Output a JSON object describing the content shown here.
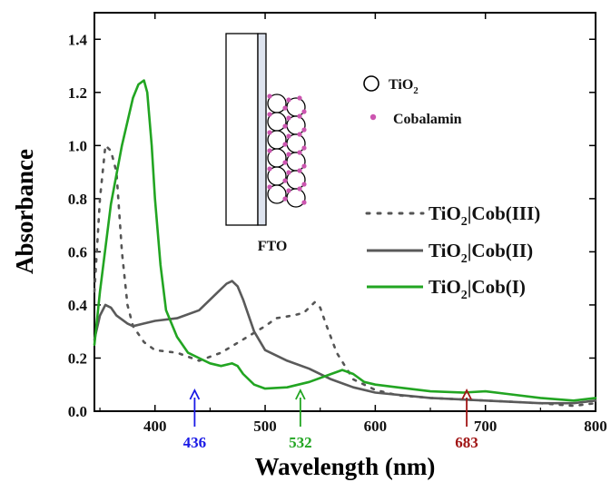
{
  "chart_data": {
    "type": "line",
    "title": "",
    "xlabel": "Wavelength (nm)",
    "ylabel": "Absorbance",
    "xlim": [
      345,
      800
    ],
    "ylim": [
      0.0,
      1.5
    ],
    "xticks": [
      400,
      500,
      600,
      700,
      800
    ],
    "yticks": [
      0.0,
      0.2,
      0.4,
      0.6,
      0.8,
      1.0,
      1.2,
      1.4
    ],
    "grid": false,
    "legend": {
      "placement": "right",
      "entries": [
        {
          "label_main": "TiO",
          "label_sub": "2",
          "label_rest": "|Cob(III)"
        },
        {
          "label_main": "TiO",
          "label_sub": "2",
          "label_rest": "|Cob(II)"
        },
        {
          "label_main": "TiO",
          "label_sub": "2",
          "label_rest": "|Cob(I)"
        }
      ]
    },
    "series": [
      {
        "legend_index": 0,
        "style": "dotted",
        "color": "#555555",
        "points": [
          [
            345,
            0.45
          ],
          [
            350,
            0.8
          ],
          [
            355,
            1.0
          ],
          [
            360,
            0.98
          ],
          [
            365,
            0.9
          ],
          [
            370,
            0.6
          ],
          [
            375,
            0.4
          ],
          [
            380,
            0.32
          ],
          [
            390,
            0.26
          ],
          [
            400,
            0.23
          ],
          [
            420,
            0.22
          ],
          [
            440,
            0.19
          ],
          [
            460,
            0.22
          ],
          [
            480,
            0.27
          ],
          [
            500,
            0.32
          ],
          [
            510,
            0.35
          ],
          [
            525,
            0.36
          ],
          [
            535,
            0.37
          ],
          [
            545,
            0.41
          ],
          [
            550,
            0.39
          ],
          [
            555,
            0.33
          ],
          [
            565,
            0.22
          ],
          [
            580,
            0.12
          ],
          [
            600,
            0.08
          ],
          [
            620,
            0.06
          ],
          [
            650,
            0.05
          ],
          [
            700,
            0.04
          ],
          [
            750,
            0.03
          ],
          [
            780,
            0.02
          ],
          [
            800,
            0.03
          ]
        ]
      },
      {
        "legend_index": 1,
        "style": "solid",
        "color": "#5a5a5a",
        "points": [
          [
            345,
            0.27
          ],
          [
            350,
            0.36
          ],
          [
            355,
            0.4
          ],
          [
            360,
            0.39
          ],
          [
            365,
            0.36
          ],
          [
            375,
            0.33
          ],
          [
            380,
            0.32
          ],
          [
            390,
            0.33
          ],
          [
            400,
            0.34
          ],
          [
            420,
            0.35
          ],
          [
            440,
            0.38
          ],
          [
            455,
            0.44
          ],
          [
            465,
            0.48
          ],
          [
            470,
            0.49
          ],
          [
            475,
            0.47
          ],
          [
            480,
            0.42
          ],
          [
            490,
            0.3
          ],
          [
            500,
            0.23
          ],
          [
            520,
            0.19
          ],
          [
            540,
            0.16
          ],
          [
            560,
            0.12
          ],
          [
            580,
            0.09
          ],
          [
            600,
            0.07
          ],
          [
            650,
            0.05
          ],
          [
            700,
            0.04
          ],
          [
            750,
            0.03
          ],
          [
            780,
            0.03
          ],
          [
            800,
            0.04
          ]
        ]
      },
      {
        "legend_index": 2,
        "style": "solid",
        "color": "#22a522",
        "points": [
          [
            345,
            0.25
          ],
          [
            350,
            0.45
          ],
          [
            360,
            0.78
          ],
          [
            370,
            1.0
          ],
          [
            380,
            1.18
          ],
          [
            385,
            1.23
          ],
          [
            390,
            1.245
          ],
          [
            393,
            1.2
          ],
          [
            397,
            1.0
          ],
          [
            400,
            0.8
          ],
          [
            405,
            0.55
          ],
          [
            410,
            0.38
          ],
          [
            420,
            0.28
          ],
          [
            430,
            0.22
          ],
          [
            440,
            0.2
          ],
          [
            450,
            0.18
          ],
          [
            460,
            0.17
          ],
          [
            470,
            0.18
          ],
          [
            475,
            0.17
          ],
          [
            480,
            0.14
          ],
          [
            490,
            0.1
          ],
          [
            500,
            0.085
          ],
          [
            520,
            0.09
          ],
          [
            540,
            0.11
          ],
          [
            560,
            0.14
          ],
          [
            570,
            0.155
          ],
          [
            580,
            0.14
          ],
          [
            590,
            0.11
          ],
          [
            600,
            0.1
          ],
          [
            620,
            0.09
          ],
          [
            650,
            0.075
          ],
          [
            680,
            0.07
          ],
          [
            700,
            0.075
          ],
          [
            720,
            0.065
          ],
          [
            750,
            0.05
          ],
          [
            780,
            0.04
          ],
          [
            800,
            0.05
          ]
        ]
      }
    ],
    "markers": [
      {
        "label": "436",
        "x": 436,
        "color": "#1a1ae6"
      },
      {
        "label": "532",
        "x": 532,
        "color": "#22a522"
      },
      {
        "label": "683",
        "x": 683,
        "color": "#a01515"
      }
    ]
  },
  "inset": {
    "label_fto": "FTO",
    "legend_tio2_main": "TiO",
    "legend_tio2_sub": "2",
    "legend_cobalamin": "Cobalamin",
    "colors": {
      "cobalamin": "#cc55b0",
      "fto_layer": "#dde3ee"
    }
  }
}
